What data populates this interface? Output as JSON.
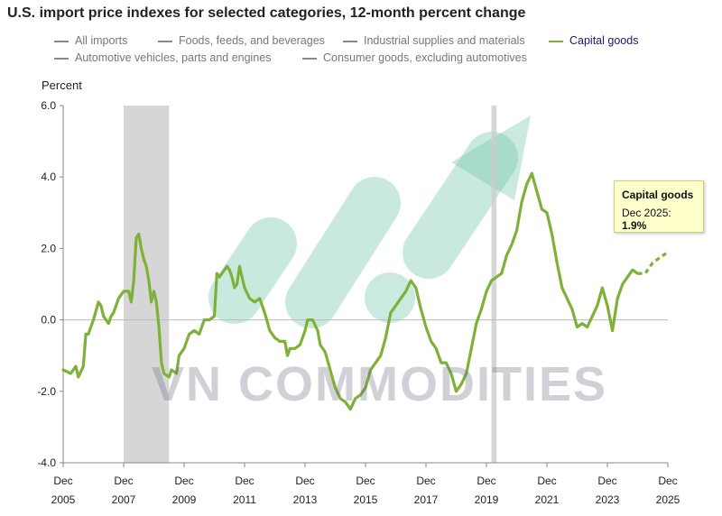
{
  "chart_data": {
    "type": "line",
    "title": "U.S. import price indexes for selected categories, 12-month percent change",
    "ylabel": "Percent",
    "ylim": [
      -4.0,
      6.0
    ],
    "yticks": [
      "-4.0",
      "-2.0",
      "0.0",
      "2.0",
      "4.0",
      "6.0"
    ],
    "xlim": [
      "2005-12",
      "2025-12"
    ],
    "xticks": [
      {
        "month": "Dec",
        "year": "2005"
      },
      {
        "month": "Dec",
        "year": "2007"
      },
      {
        "month": "Dec",
        "year": "2009"
      },
      {
        "month": "Dec",
        "year": "2011"
      },
      {
        "month": "Dec",
        "year": "2013"
      },
      {
        "month": "Dec",
        "year": "2015"
      },
      {
        "month": "Dec",
        "year": "2017"
      },
      {
        "month": "Dec",
        "year": "2019"
      },
      {
        "month": "Dec",
        "year": "2021"
      },
      {
        "month": "Dec",
        "year": "2023"
      },
      {
        "month": "Dec",
        "year": "2025"
      }
    ],
    "legend": [
      {
        "label": "All imports",
        "color": "#888888",
        "active": false
      },
      {
        "label": "Foods, feeds, and beverages",
        "color": "#888888",
        "active": false
      },
      {
        "label": "Industrial supplies and materials",
        "color": "#888888",
        "active": false
      },
      {
        "label": "Capital goods",
        "color": "#7fb03a",
        "active": true
      },
      {
        "label": "Automotive vehicles, parts and engines",
        "color": "#888888",
        "active": false
      },
      {
        "label": "Consumer goods, excluding automotives",
        "color": "#888888",
        "active": false
      }
    ],
    "recessions": [
      {
        "start": "2007-12",
        "end": "2009-06"
      },
      {
        "start": "2020-02",
        "end": "2020-04"
      }
    ],
    "series": [
      {
        "name": "Capital goods",
        "color": "#7fb03a",
        "points": [
          [
            "2005-12",
            -1.4
          ],
          [
            "2006-03",
            -1.5
          ],
          [
            "2006-05",
            -1.3
          ],
          [
            "2006-06",
            -1.6
          ],
          [
            "2006-08",
            -1.3
          ],
          [
            "2006-09",
            -0.4
          ],
          [
            "2006-10",
            -0.4
          ],
          [
            "2006-12",
            0.0
          ],
          [
            "2007-02",
            0.5
          ],
          [
            "2007-03",
            0.4
          ],
          [
            "2007-04",
            0.1
          ],
          [
            "2007-06",
            -0.1
          ],
          [
            "2007-07",
            0.1
          ],
          [
            "2007-08",
            0.2
          ],
          [
            "2007-10",
            0.6
          ],
          [
            "2007-12",
            0.8
          ],
          [
            "2008-02",
            0.8
          ],
          [
            "2008-03",
            0.5
          ],
          [
            "2008-04",
            1.1
          ],
          [
            "2008-05",
            2.3
          ],
          [
            "2008-06",
            2.4
          ],
          [
            "2008-07",
            2.0
          ],
          [
            "2008-08",
            1.7
          ],
          [
            "2008-09",
            1.5
          ],
          [
            "2008-10",
            1.1
          ],
          [
            "2008-11",
            0.5
          ],
          [
            "2008-12",
            0.8
          ],
          [
            "2009-01",
            0.5
          ],
          [
            "2009-02",
            -0.2
          ],
          [
            "2009-03",
            -1.2
          ],
          [
            "2009-04",
            -1.5
          ],
          [
            "2009-06",
            -1.6
          ],
          [
            "2009-07",
            -1.4
          ],
          [
            "2009-09",
            -1.5
          ],
          [
            "2009-10",
            -1.0
          ],
          [
            "2009-12",
            -0.8
          ],
          [
            "2010-02",
            -0.4
          ],
          [
            "2010-04",
            -0.3
          ],
          [
            "2010-06",
            -0.4
          ],
          [
            "2010-07",
            -0.2
          ],
          [
            "2010-08",
            -0.0
          ],
          [
            "2010-10",
            0.0
          ],
          [
            "2010-12",
            0.1
          ],
          [
            "2011-01",
            1.3
          ],
          [
            "2011-02",
            1.2
          ],
          [
            "2011-04",
            1.4
          ],
          [
            "2011-05",
            1.5
          ],
          [
            "2011-06",
            1.4
          ],
          [
            "2011-07",
            1.2
          ],
          [
            "2011-08",
            0.9
          ],
          [
            "2011-09",
            1.0
          ],
          [
            "2011-10",
            1.5
          ],
          [
            "2011-11",
            1.2
          ],
          [
            "2011-12",
            0.9
          ],
          [
            "2012-02",
            0.6
          ],
          [
            "2012-04",
            0.5
          ],
          [
            "2012-06",
            0.6
          ],
          [
            "2012-08",
            0.2
          ],
          [
            "2012-10",
            -0.3
          ],
          [
            "2012-12",
            -0.5
          ],
          [
            "2013-02",
            -0.6
          ],
          [
            "2013-04",
            -0.6
          ],
          [
            "2013-05",
            -1.0
          ],
          [
            "2013-06",
            -0.8
          ],
          [
            "2013-08",
            -0.8
          ],
          [
            "2013-10",
            -0.7
          ],
          [
            "2013-12",
            -0.3
          ],
          [
            "2014-01",
            0.0
          ],
          [
            "2014-03",
            0.0
          ],
          [
            "2014-05",
            -0.3
          ],
          [
            "2014-06",
            -0.7
          ],
          [
            "2014-08",
            -0.9
          ],
          [
            "2014-10",
            -1.4
          ],
          [
            "2014-12",
            -1.9
          ],
          [
            "2015-02",
            -2.2
          ],
          [
            "2015-04",
            -2.3
          ],
          [
            "2015-06",
            -2.5
          ],
          [
            "2015-08",
            -2.2
          ],
          [
            "2015-10",
            -2.1
          ],
          [
            "2015-12",
            -1.9
          ],
          [
            "2016-02",
            -1.4
          ],
          [
            "2016-04",
            -1.2
          ],
          [
            "2016-06",
            -1.0
          ],
          [
            "2016-08",
            -0.5
          ],
          [
            "2016-10",
            0.2
          ],
          [
            "2016-12",
            0.4
          ],
          [
            "2017-02",
            0.6
          ],
          [
            "2017-04",
            0.8
          ],
          [
            "2017-06",
            1.1
          ],
          [
            "2017-08",
            0.9
          ],
          [
            "2017-10",
            0.3
          ],
          [
            "2017-12",
            -0.2
          ],
          [
            "2018-02",
            -0.6
          ],
          [
            "2018-04",
            -0.8
          ],
          [
            "2018-06",
            -1.2
          ],
          [
            "2018-08",
            -1.2
          ],
          [
            "2018-10",
            -1.5
          ],
          [
            "2018-12",
            -2.0
          ],
          [
            "2019-02",
            -1.8
          ],
          [
            "2019-04",
            -1.5
          ],
          [
            "2019-06",
            -0.8
          ],
          [
            "2019-08",
            -0.1
          ],
          [
            "2019-10",
            0.3
          ],
          [
            "2019-12",
            0.8
          ],
          [
            "2020-02",
            1.1
          ],
          [
            "2020-04",
            1.2
          ],
          [
            "2020-06",
            1.3
          ],
          [
            "2020-08",
            1.8
          ],
          [
            "2020-10",
            2.1
          ],
          [
            "2020-12",
            2.5
          ],
          [
            "2021-02",
            3.3
          ],
          [
            "2021-04",
            3.8
          ],
          [
            "2021-06",
            4.1
          ],
          [
            "2021-08",
            3.6
          ],
          [
            "2021-10",
            3.1
          ],
          [
            "2021-12",
            3.0
          ],
          [
            "2022-02",
            2.4
          ],
          [
            "2022-04",
            1.6
          ],
          [
            "2022-06",
            0.9
          ],
          [
            "2022-08",
            0.6
          ],
          [
            "2022-10",
            0.3
          ],
          [
            "2022-12",
            -0.2
          ],
          [
            "2023-02",
            -0.1
          ],
          [
            "2023-04",
            -0.2
          ],
          [
            "2023-06",
            0.1
          ],
          [
            "2023-08",
            0.4
          ],
          [
            "2023-10",
            0.9
          ],
          [
            "2023-12",
            0.4
          ],
          [
            "2024-02",
            -0.3
          ],
          [
            "2024-04",
            0.6
          ],
          [
            "2024-06",
            1.0
          ],
          [
            "2024-08",
            1.2
          ],
          [
            "2024-10",
            1.4
          ],
          [
            "2024-12",
            1.3
          ]
        ],
        "dashed_points": [
          [
            "2025-03",
            1.3
          ],
          [
            "2025-06",
            1.6
          ],
          [
            "2025-12",
            1.9
          ]
        ]
      }
    ],
    "tooltip": {
      "title": "Capital goods",
      "label": "Dec 2025:",
      "value": "1.9%"
    }
  },
  "watermark": {
    "text": "VN COMMODITIES",
    "color": "#66c2a5"
  }
}
